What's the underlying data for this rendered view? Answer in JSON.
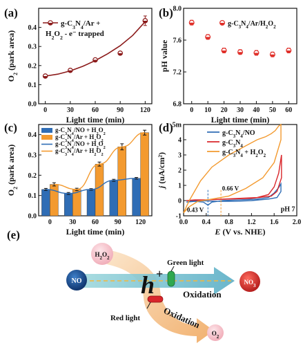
{
  "panels": {
    "a": {
      "label": "(a)"
    },
    "b": {
      "label": "(b)"
    },
    "c": {
      "label": "(c)"
    },
    "d": {
      "label": "(d)"
    },
    "e": {
      "label": "(e)"
    }
  },
  "chart_data": [
    {
      "id": "a",
      "type": "line",
      "xlabel": "Light time (min)",
      "ylabel_main": "O",
      "ylabel_sub": "2",
      "ylabel_rest": " (park area)",
      "xlim": [
        -8,
        128
      ],
      "ylim": [
        0.0,
        0.5
      ],
      "xticks": [
        "0",
        "30",
        "60",
        "90",
        "120"
      ],
      "xtick_values": [
        0,
        30,
        60,
        90,
        120
      ],
      "yticks": [
        "0.0",
        "0.1",
        "0.2",
        "0.3",
        "0.4"
      ],
      "ytick_values": [
        0.0,
        0.1,
        0.2,
        0.3,
        0.4
      ],
      "legend_line1": "g-C3N4/Ar +",
      "legend_line2": "H2O2 - e⁻ trapped",
      "series": [
        {
          "x": [
            0,
            30,
            60,
            90,
            120
          ],
          "y": [
            0.145,
            0.175,
            0.23,
            0.265,
            0.435
          ],
          "err": [
            0.006,
            0.006,
            0.008,
            0.006,
            0.025
          ],
          "color": "#8b1a1a"
        }
      ],
      "fit": {
        "x": [
          0,
          15,
          30,
          45,
          60,
          75,
          90,
          105,
          120
        ],
        "y": [
          0.145,
          0.155,
          0.172,
          0.196,
          0.226,
          0.262,
          0.304,
          0.358,
          0.43
        ]
      }
    },
    {
      "id": "b",
      "type": "scatter",
      "xlabel": "Light time (min)",
      "ylabel": "pH value",
      "xlim": [
        -5,
        65
      ],
      "ylim": [
        6.8,
        8.0
      ],
      "xticks": [
        "0",
        "10",
        "20",
        "30",
        "40",
        "50",
        "60"
      ],
      "xtick_values": [
        0,
        10,
        20,
        30,
        40,
        50,
        60
      ],
      "yticks": [
        "6.8",
        "7.2",
        "7.6",
        "8.0"
      ],
      "ytick_values": [
        6.8,
        7.2,
        7.6,
        8.0
      ],
      "legend": "g-C3N4/Ar/H2O2",
      "series": [
        {
          "x": [
            0,
            10,
            20,
            30,
            40,
            50,
            60
          ],
          "y": [
            7.82,
            7.64,
            7.47,
            7.45,
            7.44,
            7.42,
            7.47
          ],
          "err": [
            0.03,
            0.03,
            0.03,
            0.03,
            0.03,
            0.03,
            0.03
          ],
          "color": "#e0302a"
        }
      ]
    },
    {
      "id": "c",
      "type": "bar",
      "xlabel": "Light time (min)",
      "ylabel_main": "O",
      "ylabel_sub": "2",
      "ylabel_rest": " (park area)",
      "categories": [
        "0",
        "30",
        "60",
        "90",
        "120"
      ],
      "ylim": [
        0.0,
        0.45
      ],
      "yticks": [
        "0.0",
        "0.1",
        "0.2",
        "0.3",
        "0.4"
      ],
      "ytick_values": [
        0.0,
        0.1,
        0.2,
        0.3,
        0.4
      ],
      "legend": [
        "g-C3N4/NO + H2O2",
        "g-C3N4/Ar + H2O2",
        "g-C3N4/NO + H2O2",
        "g-C3N4/Ar + H2O2"
      ],
      "series": [
        {
          "name": "g-C3N4/NO + H2O2",
          "values": [
            0.13,
            0.11,
            0.13,
            0.175,
            0.185
          ],
          "color": "#2f6db5"
        },
        {
          "name": "g-C3N4/Ar + H2O2",
          "values": [
            0.155,
            0.13,
            0.255,
            0.34,
            0.41
          ],
          "color": "#f39a2f"
        }
      ],
      "err": [
        [
          0.005,
          0.005,
          0.004,
          0.005,
          0.004
        ],
        [
          0.008,
          0.006,
          0.01,
          0.015,
          0.012
        ]
      ]
    },
    {
      "id": "d",
      "type": "line",
      "xlabel_main": "E",
      "xlabel_rest": " (V vs. NHE)",
      "ylabel_main": "j",
      "ylabel_rest": " (uA/cm²)",
      "xlim": [
        0.0,
        2.0
      ],
      "ylim": [
        -1.0,
        5.0
      ],
      "xticks": [
        "0.0",
        "0.4",
        "0.8",
        "1.2",
        "1.6",
        "2.0"
      ],
      "xtick_values": [
        0.0,
        0.4,
        0.8,
        1.2,
        1.6,
        2.0
      ],
      "yticks": [
        "-1",
        "0",
        "1",
        "2",
        "3",
        "4",
        "5m"
      ],
      "ytick_values": [
        -1,
        0,
        1,
        2,
        3,
        4,
        5
      ],
      "legend": [
        "g-C3N4/NO",
        "g-C3N4",
        "g-C3N4 + H2O2"
      ],
      "annotations": [
        "0.66 V",
        "0.43 V",
        "pH 7"
      ],
      "series": [
        {
          "name": "g-C3N4/NO",
          "color": "#2f6db5",
          "x": [
            0.05,
            0.2,
            0.35,
            0.43,
            0.5,
            0.7,
            1.0,
            1.3,
            1.5,
            1.6,
            1.68,
            1.72,
            1.72,
            1.65,
            1.5,
            1.2,
            0.9,
            0.6,
            0.4,
            0.2,
            0.05
          ],
          "y": [
            -0.1,
            -0.05,
            -0.1,
            -0.3,
            -0.1,
            0.0,
            0.05,
            0.1,
            0.2,
            0.5,
            0.85,
            1.1,
            0.6,
            0.2,
            0.1,
            0.0,
            -0.05,
            -0.05,
            -0.02,
            0.0,
            -0.1
          ]
        },
        {
          "name": "g-C3N4",
          "color": "#d9262b",
          "x": [
            0.05,
            0.2,
            0.4,
            0.7,
            1.0,
            1.3,
            1.5,
            1.6,
            1.68,
            1.73,
            1.73,
            1.65,
            1.55,
            1.2,
            0.8,
            0.4,
            0.15,
            0.05
          ],
          "y": [
            0.0,
            0.05,
            0.05,
            0.1,
            0.15,
            0.2,
            0.4,
            0.9,
            1.8,
            3.0,
            1.5,
            0.6,
            0.3,
            0.15,
            0.1,
            0.05,
            0.02,
            0.0
          ]
        },
        {
          "name": "g-C3N4 + H2O2",
          "color": "#f39a2f",
          "x": [
            0.0,
            0.1,
            0.3,
            0.5,
            0.8,
            1.1,
            1.3,
            1.45,
            1.55,
            1.62,
            1.68,
            1.72,
            1.72,
            1.6,
            1.4,
            1.1,
            0.8,
            0.5,
            0.25,
            0.1,
            0.0
          ],
          "y": [
            -0.8,
            0.0,
            1.3,
            2.2,
            3.0,
            3.6,
            4.0,
            4.2,
            4.4,
            4.6,
            4.9,
            5.0,
            4.0,
            2.5,
            1.5,
            0.8,
            0.3,
            0.1,
            -0.05,
            -0.4,
            -0.8
          ]
        }
      ],
      "markers": [
        {
          "x": 0.43,
          "color": "#2f6db5"
        },
        {
          "x": 0.66,
          "color": "#f39a2f"
        }
      ]
    }
  ],
  "diagram": {
    "left_circle": "NO",
    "right_circle": "NO3",
    "top_bubble": "H2O2",
    "bottom_bubble": "O2",
    "center_symbol": "h",
    "center_sup": "+",
    "green_label": "Green light",
    "red_label": "Red light",
    "oxidation_main": "Oxidation",
    "oxidation_lower": "Oxidation",
    "colors": {
      "blue_circle": "#1d4f8f",
      "red_circle": "#e0302a",
      "arrow_blue": "#8fd0d8",
      "arrow_orange": "#f6c18c",
      "bubble": "#f4c6cd"
    }
  }
}
